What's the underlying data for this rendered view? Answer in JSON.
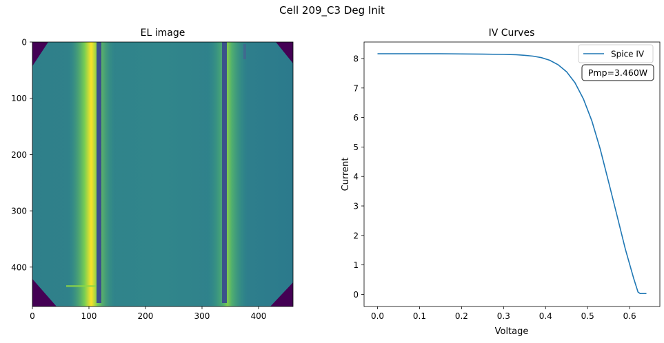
{
  "figure": {
    "suptitle": "Cell 209_C3 Deg Init"
  },
  "chart_data": [
    {
      "type": "heatmap",
      "title": "EL image",
      "xlabel": "",
      "ylabel": "",
      "colormap": "viridis",
      "xlim": [
        0,
        461
      ],
      "ylim": [
        470,
        0
      ],
      "x_ticks": [
        "0",
        "100",
        "200",
        "300",
        "400"
      ],
      "y_ticks": [
        "0",
        "100",
        "200",
        "300",
        "400"
      ],
      "features": {
        "busbar_x": [
          119,
          340
        ],
        "background_level": 0.55,
        "corner_level": 0.05,
        "bright_band_level": 0.95
      }
    },
    {
      "type": "line",
      "title": "IV Curves",
      "xlabel": "Voltage",
      "ylabel": "Current",
      "xlim": [
        -0.032,
        0.672
      ],
      "ylim": [
        -0.41,
        8.56
      ],
      "x_ticks": [
        "0.0",
        "0.1",
        "0.2",
        "0.3",
        "0.4",
        "0.5",
        "0.6"
      ],
      "y_ticks": [
        "0",
        "1",
        "2",
        "3",
        "4",
        "5",
        "6",
        "7",
        "8"
      ],
      "legend_position": "top-right",
      "annotation": "Pmp=3.460W",
      "series": [
        {
          "name": "Spice IV",
          "color": "#1f77b4",
          "x": [
            0.0,
            0.05,
            0.1,
            0.15,
            0.2,
            0.25,
            0.3,
            0.33,
            0.35,
            0.37,
            0.39,
            0.41,
            0.43,
            0.45,
            0.47,
            0.49,
            0.51,
            0.53,
            0.55,
            0.57,
            0.59,
            0.61,
            0.62,
            0.625,
            0.64
          ],
          "y": [
            8.16,
            8.16,
            8.16,
            8.16,
            8.155,
            8.15,
            8.14,
            8.13,
            8.11,
            8.08,
            8.03,
            7.94,
            7.79,
            7.55,
            7.18,
            6.63,
            5.89,
            4.93,
            3.81,
            2.68,
            1.53,
            0.53,
            0.08,
            0.03,
            0.03
          ]
        }
      ]
    }
  ]
}
